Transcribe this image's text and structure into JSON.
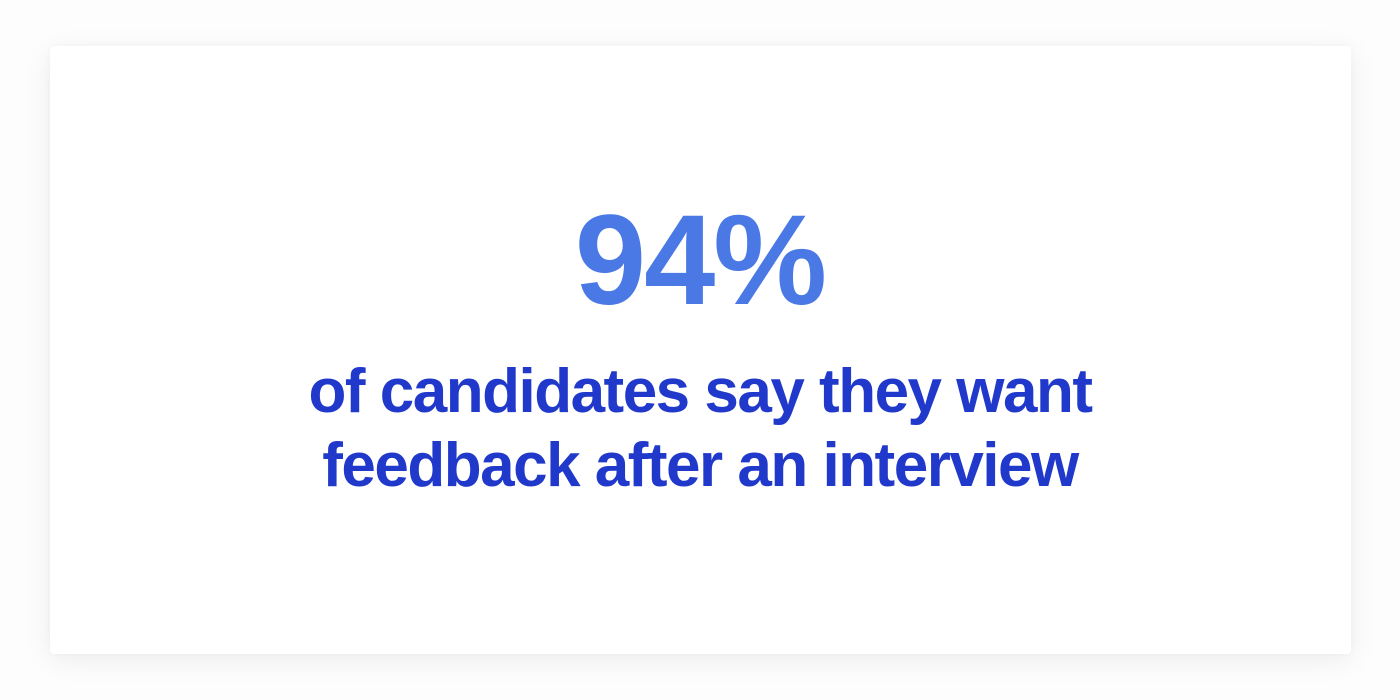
{
  "card": {
    "stat_value": "94%",
    "description_line1": "of candidates say they want",
    "description_line2": "feedback after an interview"
  },
  "colors": {
    "stat_value_blue": "#4a79e6",
    "description_blue": "#2039cb",
    "card_background": "#ffffff",
    "page_background": "#fdfdfd"
  }
}
